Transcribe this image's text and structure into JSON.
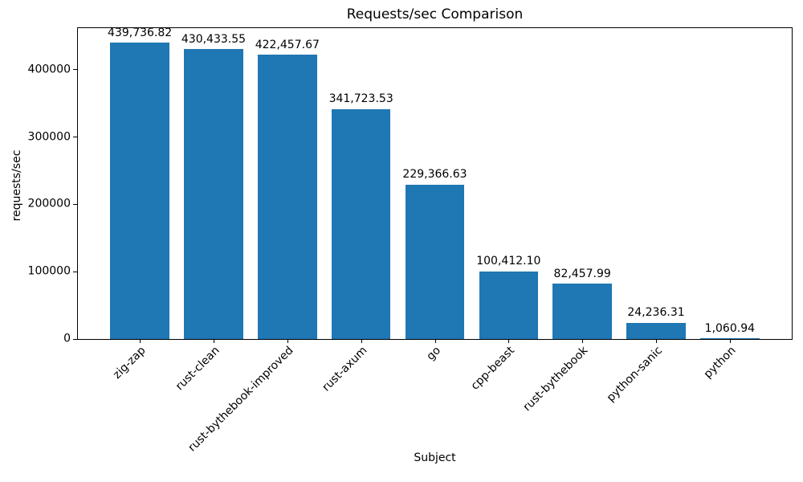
{
  "chart_data": {
    "type": "bar",
    "title": "Requests/sec Comparison",
    "xlabel": "Subject",
    "ylabel": "requests/sec",
    "categories": [
      "zig-zap",
      "rust-clean",
      "rust-bythebook-improved",
      "rust-axum",
      "go",
      "cpp-beast",
      "rust-bythebook",
      "python-sanic",
      "python"
    ],
    "values": [
      439736.82,
      430433.55,
      422457.67,
      341723.53,
      229366.63,
      100412.1,
      82457.99,
      24236.31,
      1060.94
    ],
    "bar_labels": [
      "439,736.82",
      "430,433.55",
      "422,457.67",
      "341,723.53",
      "229,366.63",
      "100,412.10",
      "82,457.99",
      "24,236.31",
      "1,060.94"
    ],
    "yticks": [
      0,
      100000,
      200000,
      300000,
      400000
    ],
    "ytick_labels": [
      "0",
      "100000",
      "200000",
      "300000",
      "400000"
    ],
    "ylim": [
      0,
      461723.66
    ],
    "bar_color": "#1f77b4",
    "spine_color": "#000000",
    "text_color": "#000000",
    "grid": false,
    "legend": null,
    "x_tick_rotation": 45
  }
}
